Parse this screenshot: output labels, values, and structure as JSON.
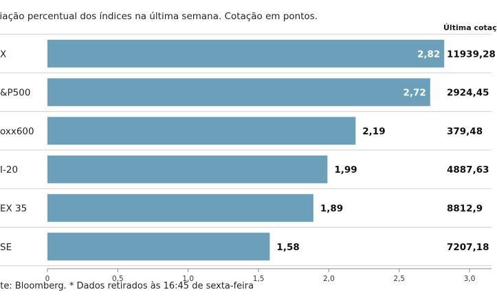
{
  "subtitle": "riação percentual dos índices na última semana. Cotação em pontos.",
  "column_header": "Última cotaç",
  "footer": "nte: Bloomberg.  * Dados retirados às 16:45 de sexta-feira",
  "colors": {
    "bar": "#6b9fba",
    "separator": "#cfcfcf",
    "axis": "#888888",
    "label_inside": "#ffffff",
    "label_outside": "#111111"
  },
  "chart_data": {
    "type": "bar",
    "orientation": "horizontal",
    "title": "",
    "categories": [
      "X",
      "&P500",
      "oxx600",
      "I-20",
      "EX 35",
      "SE"
    ],
    "values": [
      2.82,
      2.72,
      2.19,
      1.99,
      1.89,
      1.58
    ],
    "value_labels": [
      "2,82",
      "2,72",
      "2,19",
      "1,99",
      "1,89",
      "1,58"
    ],
    "last_quote": [
      "11939,28",
      "2924,45",
      "379,48",
      "4887,63",
      "8812,9",
      "7207,18"
    ],
    "xlim": [
      0,
      3.0
    ],
    "xticks": [
      0,
      0.5,
      1.0,
      1.5,
      2.0,
      2.5,
      3.0
    ],
    "xtick_labels": [
      "0",
      "0,5",
      "1,0",
      "1,5",
      "2,0",
      "2,5",
      "3,0"
    ],
    "xlabel": "",
    "ylabel": "",
    "grid": false,
    "legend": "none"
  }
}
